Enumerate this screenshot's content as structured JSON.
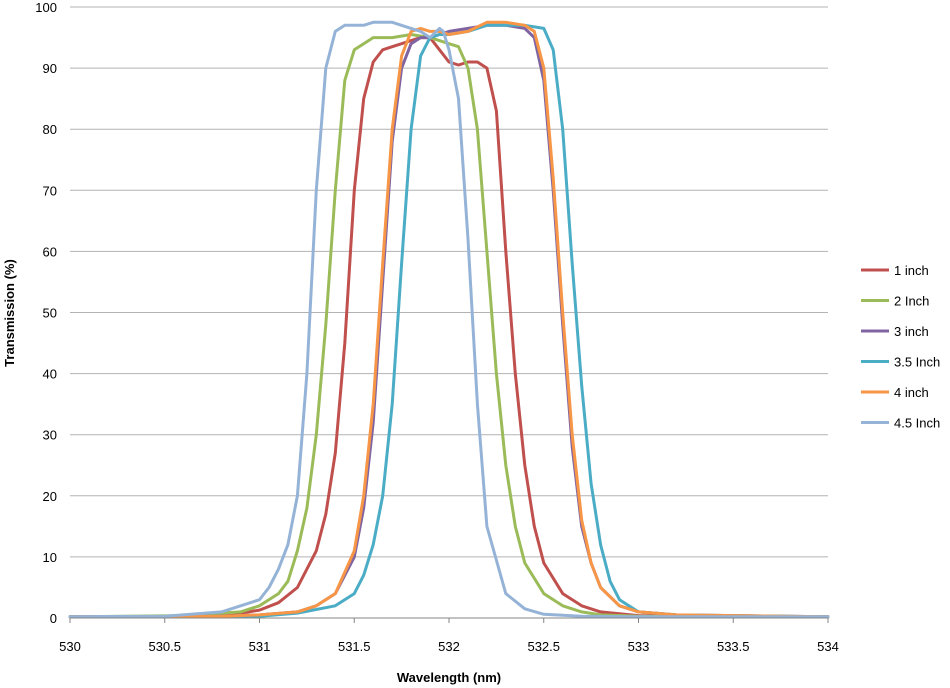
{
  "chart_data": {
    "type": "line",
    "title": "",
    "xlabel": "Wavelength (nm)",
    "ylabel": "Transmission (%)",
    "xlim": [
      530,
      534
    ],
    "ylim": [
      0,
      100
    ],
    "xticks": [
      530,
      530.5,
      531,
      531.5,
      532,
      532.5,
      533,
      533.5,
      534
    ],
    "xtick_labels": [
      "530",
      "530.5",
      "531",
      "531.5",
      "532",
      "532.5",
      "533",
      "533.5",
      "534"
    ],
    "yticks": [
      0,
      10,
      20,
      30,
      40,
      50,
      60,
      70,
      80,
      90,
      100
    ],
    "ytick_labels": [
      "0",
      "10",
      "20",
      "30",
      "40",
      "50",
      "60",
      "70",
      "80",
      "90",
      "100"
    ],
    "grid": "horizontal",
    "legend_position": "right",
    "series": [
      {
        "name": "1 inch",
        "color": "#c0504d",
        "x": [
          530,
          530.6,
          530.9,
          531.0,
          531.1,
          531.2,
          531.3,
          531.35,
          531.4,
          531.45,
          531.5,
          531.55,
          531.6,
          531.65,
          531.7,
          531.75,
          531.8,
          531.85,
          531.9,
          531.95,
          532.0,
          532.05,
          532.1,
          532.15,
          532.2,
          532.25,
          532.3,
          532.35,
          532.4,
          532.45,
          532.5,
          532.6,
          532.7,
          532.8,
          533.0,
          534
        ],
        "y": [
          0.2,
          0.3,
          0.8,
          1.3,
          2.5,
          5,
          11,
          17,
          27,
          45,
          70,
          85,
          91,
          93,
          93.5,
          94,
          94.5,
          95,
          95,
          93,
          91,
          90.5,
          91,
          91,
          90,
          83,
          60,
          40,
          25,
          15,
          9,
          4,
          2,
          1,
          0.4,
          0.2
        ]
      },
      {
        "name": "2 Inch",
        "color": "#9bbb59",
        "x": [
          530,
          530.6,
          530.9,
          531.0,
          531.1,
          531.15,
          531.2,
          531.25,
          531.3,
          531.35,
          531.4,
          531.45,
          531.5,
          531.55,
          531.6,
          531.7,
          531.8,
          531.9,
          532.0,
          532.05,
          532.1,
          532.15,
          532.2,
          532.25,
          532.3,
          532.35,
          532.4,
          532.5,
          532.6,
          532.7,
          532.8,
          533.0,
          534
        ],
        "y": [
          0.2,
          0.4,
          1,
          2,
          4,
          6,
          11,
          18,
          30,
          48,
          70,
          88,
          93,
          94,
          95,
          95,
          95.5,
          95,
          94,
          93.5,
          90,
          80,
          60,
          40,
          25,
          15,
          9,
          4,
          2,
          1,
          0.5,
          0.3,
          0.2
        ]
      },
      {
        "name": "3 inch",
        "color": "#8064a2",
        "x": [
          530,
          530.8,
          531.0,
          531.2,
          531.3,
          531.4,
          531.5,
          531.55,
          531.6,
          531.65,
          531.7,
          531.75,
          531.8,
          531.85,
          531.9,
          531.95,
          532.0,
          532.1,
          532.2,
          532.3,
          532.4,
          532.45,
          532.5,
          532.55,
          532.6,
          532.65,
          532.7,
          532.75,
          532.8,
          532.9,
          533.0,
          533.2,
          534
        ],
        "y": [
          0.2,
          0.3,
          0.5,
          1,
          2,
          4,
          10,
          18,
          32,
          55,
          78,
          90,
          94,
          95,
          95,
          95.5,
          96,
          96.5,
          97,
          97,
          96.5,
          95,
          88,
          70,
          48,
          28,
          15,
          9,
          5,
          2,
          1,
          0.5,
          0.2
        ]
      },
      {
        "name": "3.5 Inch",
        "color": "#4bacc6",
        "x": [
          530,
          531.0,
          531.2,
          531.4,
          531.5,
          531.55,
          531.6,
          531.65,
          531.7,
          531.75,
          531.8,
          531.85,
          531.9,
          531.95,
          532.0,
          532.1,
          532.2,
          532.3,
          532.4,
          532.5,
          532.55,
          532.6,
          532.65,
          532.7,
          532.75,
          532.8,
          532.85,
          532.9,
          533.0,
          533.2,
          534
        ],
        "y": [
          0.2,
          0.3,
          0.8,
          2,
          4,
          7,
          12,
          20,
          35,
          58,
          80,
          92,
          95,
          95.5,
          95.5,
          96,
          97,
          97,
          97,
          96.5,
          93,
          80,
          58,
          38,
          22,
          12,
          6,
          3,
          1,
          0.5,
          0.2
        ]
      },
      {
        "name": "4 inch",
        "color": "#f79646",
        "x": [
          530,
          530.8,
          531.0,
          531.2,
          531.3,
          531.4,
          531.5,
          531.55,
          531.6,
          531.65,
          531.7,
          531.75,
          531.8,
          531.85,
          531.9,
          531.95,
          532.0,
          532.1,
          532.2,
          532.3,
          532.4,
          532.45,
          532.5,
          532.55,
          532.6,
          532.65,
          532.7,
          532.75,
          532.8,
          532.9,
          533.0,
          533.2,
          534
        ],
        "y": [
          0.2,
          0.3,
          0.5,
          1,
          2,
          4,
          11,
          20,
          35,
          58,
          80,
          92,
          96,
          96.5,
          96,
          96,
          95.5,
          96,
          97.5,
          97.5,
          97,
          96,
          90,
          72,
          50,
          30,
          16,
          9,
          5,
          2,
          1,
          0.5,
          0.2
        ]
      },
      {
        "name": "4.5 Inch",
        "color": "#95b3d7",
        "x": [
          530,
          530.5,
          530.8,
          531.0,
          531.05,
          531.1,
          531.15,
          531.2,
          531.25,
          531.3,
          531.35,
          531.4,
          531.45,
          531.5,
          531.55,
          531.6,
          531.7,
          531.8,
          531.85,
          531.9,
          531.95,
          531.97,
          532.0,
          532.05,
          532.1,
          532.15,
          532.2,
          532.3,
          532.4,
          532.5,
          532.7,
          533.0,
          534
        ],
        "y": [
          0.2,
          0.3,
          1,
          3,
          5,
          8,
          12,
          20,
          40,
          70,
          90,
          96,
          97,
          97,
          97,
          97.5,
          97.5,
          96.5,
          96,
          95,
          96.5,
          96,
          93,
          85,
          62,
          35,
          15,
          4,
          1.5,
          0.6,
          0.3,
          0.2,
          0.2
        ]
      }
    ]
  }
}
